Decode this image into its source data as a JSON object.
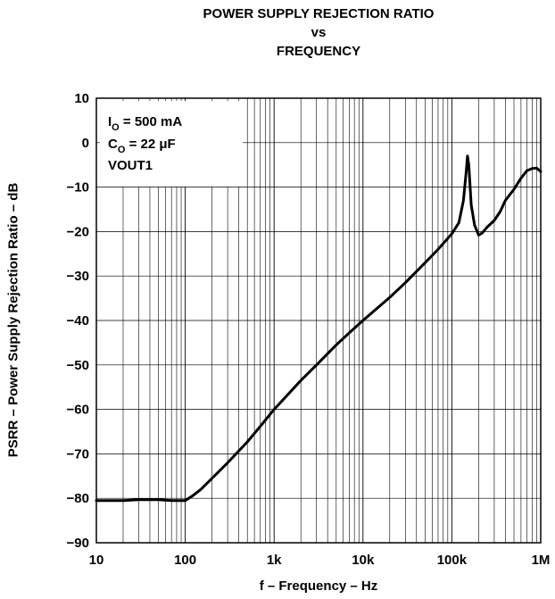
{
  "chart_data": {
    "type": "line",
    "title_lines": [
      "POWER SUPPLY REJECTION RATIO",
      "vs",
      "FREQUENCY"
    ],
    "xlabel": "f – Frequency – Hz",
    "ylabel": "PSRR – Power Supply Rejection Ratio – dB",
    "x_scale": "log",
    "xlim": [
      10,
      1000000
    ],
    "ylim": [
      -90,
      10
    ],
    "grid": true,
    "x_ticks": [
      10,
      100,
      1000,
      10000,
      100000,
      1000000
    ],
    "x_tick_labels": [
      "10",
      "100",
      "1k",
      "10k",
      "100k",
      "1M"
    ],
    "y_ticks": [
      10,
      0,
      -10,
      -20,
      -30,
      -40,
      -50,
      -60,
      -70,
      -80,
      -90
    ],
    "y_tick_labels": [
      "10",
      "0",
      "−10",
      "−20",
      "−30",
      "−40",
      "−50",
      "−60",
      "−70",
      "−80",
      "−90"
    ],
    "annotations": {
      "line1_main": "I",
      "line1_sub": "O",
      "line1_rest": " = 500 mA",
      "line2_main": "C",
      "line2_sub": "O",
      "line2_rest": " = 22 μF",
      "line3": "VOUT1"
    },
    "series": [
      {
        "x": [
          10,
          20,
          30,
          50,
          70,
          100,
          120,
          150,
          200,
          300,
          500,
          700,
          1000,
          2000,
          3000,
          5000,
          7000,
          10000,
          20000,
          30000,
          50000,
          70000,
          100000,
          120000,
          135000,
          145000,
          150000,
          155000,
          165000,
          180000,
          200000,
          220000,
          250000,
          300000,
          350000,
          400000,
          500000,
          600000,
          700000,
          800000,
          900000,
          1000000
        ],
        "y": [
          -80.5,
          -80.5,
          -80.3,
          -80.3,
          -80.5,
          -80.5,
          -79.5,
          -78,
          -75.5,
          -72,
          -67.3,
          -63.8,
          -60,
          -53.5,
          -50,
          -45.5,
          -42.8,
          -40,
          -34.8,
          -31.5,
          -27,
          -24,
          -20.5,
          -18,
          -13,
          -6.5,
          -3,
          -5,
          -14,
          -18.5,
          -20.8,
          -20.3,
          -19,
          -17.5,
          -15.5,
          -13,
          -10.5,
          -8,
          -6.3,
          -5.8,
          -5.7,
          -6.5
        ]
      }
    ]
  }
}
